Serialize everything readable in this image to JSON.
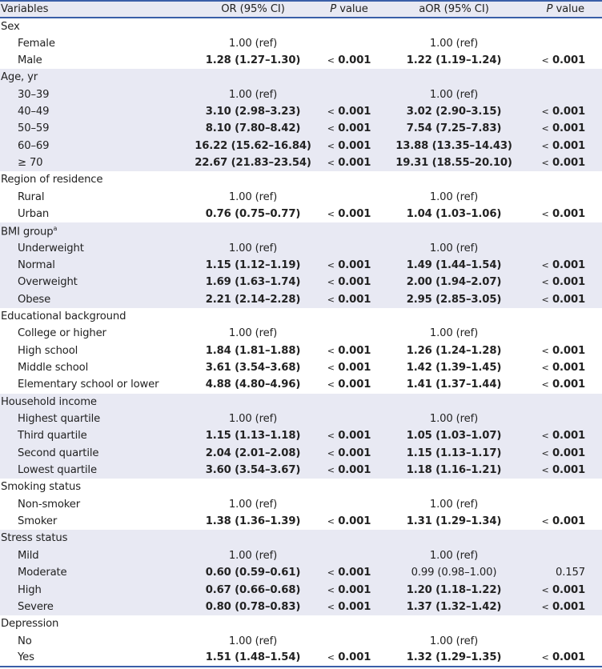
{
  "header": {
    "variables": "Variables",
    "or": "OR (95% CI)",
    "p_italic": "P",
    "p_rest": " value",
    "aor": "aOR (95% CI)"
  },
  "colors": {
    "border": "#3a5ea8",
    "shade": "#e8e9f3"
  },
  "groups": [
    {
      "label": "Sex",
      "sup": "",
      "rows": [
        {
          "label": "Female",
          "or": "1.00 (ref)",
          "p1": "",
          "aor": "1.00 (ref)",
          "p2": "",
          "or_bold": false,
          "aor_bold": false
        },
        {
          "label": "Male",
          "or": "1.28 (1.27–1.30)",
          "p1": "0.001",
          "aor": "1.22 (1.19–1.24)",
          "p2": "0.001",
          "or_bold": true,
          "aor_bold": true
        }
      ]
    },
    {
      "label": "Age, yr",
      "sup": "",
      "rows": [
        {
          "label": "30–39",
          "or": "1.00 (ref)",
          "p1": "",
          "aor": "1.00 (ref)",
          "p2": "",
          "or_bold": false,
          "aor_bold": false
        },
        {
          "label": "40–49",
          "or": "3.10 (2.98–3.23)",
          "p1": "0.001",
          "aor": "3.02 (2.90–3.15)",
          "p2": "0.001",
          "or_bold": true,
          "aor_bold": true
        },
        {
          "label": "50–59",
          "or": "8.10 (7.80–8.42)",
          "p1": "0.001",
          "aor": "7.54 (7.25–7.83)",
          "p2": "0.001",
          "or_bold": true,
          "aor_bold": true
        },
        {
          "label": "60–69",
          "or": "16.22 (15.62–16.84)",
          "p1": "0.001",
          "aor": "13.88 (13.35–14.43)",
          "p2": "0.001",
          "or_bold": true,
          "aor_bold": true
        },
        {
          "label": "≥ 70",
          "or": "22.67 (21.83–23.54)",
          "p1": "0.001",
          "aor": "19.31 (18.55–20.10)",
          "p2": "0.001",
          "or_bold": true,
          "aor_bold": true
        }
      ]
    },
    {
      "label": "Region of residence",
      "sup": "",
      "rows": [
        {
          "label": "Rural",
          "or": "1.00 (ref)",
          "p1": "",
          "aor": "1.00 (ref)",
          "p2": "",
          "or_bold": false,
          "aor_bold": false
        },
        {
          "label": "Urban",
          "or": "0.76 (0.75–0.77)",
          "p1": "0.001",
          "aor": "1.04 (1.03–1.06)",
          "p2": "0.001",
          "or_bold": true,
          "aor_bold": true
        }
      ]
    },
    {
      "label": "BMI group",
      "sup": "a",
      "rows": [
        {
          "label": "Underweight",
          "or": "1.00 (ref)",
          "p1": "",
          "aor": "1.00 (ref)",
          "p2": "",
          "or_bold": false,
          "aor_bold": false
        },
        {
          "label": "Normal",
          "or": "1.15 (1.12–1.19)",
          "p1": "0.001",
          "aor": "1.49 (1.44–1.54)",
          "p2": "0.001",
          "or_bold": true,
          "aor_bold": true
        },
        {
          "label": "Overweight",
          "or": "1.69 (1.63–1.74)",
          "p1": "0.001",
          "aor": "2.00 (1.94–2.07)",
          "p2": "0.001",
          "or_bold": true,
          "aor_bold": true
        },
        {
          "label": "Obese",
          "or": "2.21 (2.14–2.28)",
          "p1": "0.001",
          "aor": "2.95 (2.85–3.05)",
          "p2": "0.001",
          "or_bold": true,
          "aor_bold": true
        }
      ]
    },
    {
      "label": "Educational background",
      "sup": "",
      "rows": [
        {
          "label": "College or higher",
          "or": "1.00 (ref)",
          "p1": "",
          "aor": "1.00 (ref)",
          "p2": "",
          "or_bold": false,
          "aor_bold": false
        },
        {
          "label": "High school",
          "or": "1.84 (1.81–1.88)",
          "p1": "0.001",
          "aor": "1.26 (1.24–1.28)",
          "p2": "0.001",
          "or_bold": true,
          "aor_bold": true
        },
        {
          "label": "Middle school",
          "or": "3.61 (3.54–3.68)",
          "p1": "0.001",
          "aor": "1.42 (1.39–1.45)",
          "p2": "0.001",
          "or_bold": true,
          "aor_bold": true
        },
        {
          "label": "Elementary school or lower",
          "or": "4.88 (4.80–4.96)",
          "p1": "0.001",
          "aor": "1.41 (1.37–1.44)",
          "p2": "0.001",
          "or_bold": true,
          "aor_bold": true
        }
      ]
    },
    {
      "label": "Household income",
      "sup": "",
      "rows": [
        {
          "label": "Highest quartile",
          "or": "1.00 (ref)",
          "p1": "",
          "aor": "1.00 (ref)",
          "p2": "",
          "or_bold": false,
          "aor_bold": false
        },
        {
          "label": "Third quartile",
          "or": "1.15 (1.13–1.18)",
          "p1": "0.001",
          "aor": "1.05 (1.03–1.07)",
          "p2": "0.001",
          "or_bold": true,
          "aor_bold": true
        },
        {
          "label": "Second quartile",
          "or": "2.04 (2.01–2.08)",
          "p1": "0.001",
          "aor": "1.15 (1.13–1.17)",
          "p2": "0.001",
          "or_bold": true,
          "aor_bold": true
        },
        {
          "label": "Lowest quartile",
          "or": "3.60 (3.54–3.67)",
          "p1": "0.001",
          "aor": "1.18 (1.16–1.21)",
          "p2": "0.001",
          "or_bold": true,
          "aor_bold": true
        }
      ]
    },
    {
      "label": "Smoking status",
      "sup": "",
      "rows": [
        {
          "label": "Non-smoker",
          "or": "1.00 (ref)",
          "p1": "",
          "aor": "1.00 (ref)",
          "p2": "",
          "or_bold": false,
          "aor_bold": false
        },
        {
          "label": "Smoker",
          "or": "1.38 (1.36–1.39)",
          "p1": "0.001",
          "aor": "1.31 (1.29–1.34)",
          "p2": "0.001",
          "or_bold": true,
          "aor_bold": true
        }
      ]
    },
    {
      "label": "Stress status",
      "sup": "",
      "rows": [
        {
          "label": "Mild",
          "or": "1.00 (ref)",
          "p1": "",
          "aor": "1.00 (ref)",
          "p2": "",
          "or_bold": false,
          "aor_bold": false
        },
        {
          "label": "Moderate",
          "or": "0.60 (0.59–0.61)",
          "p1": "0.001",
          "aor": "0.99 (0.98–1.00)",
          "p2": "0.157",
          "or_bold": true,
          "aor_bold": false,
          "p2_plain": true
        },
        {
          "label": "High",
          "or": "0.67 (0.66–0.68)",
          "p1": "0.001",
          "aor": "1.20 (1.18–1.22)",
          "p2": "0.001",
          "or_bold": true,
          "aor_bold": true
        },
        {
          "label": "Severe",
          "or": "0.80 (0.78–0.83)",
          "p1": "0.001",
          "aor": "1.37 (1.32–1.42)",
          "p2": "0.001",
          "or_bold": true,
          "aor_bold": true
        }
      ]
    },
    {
      "label": "Depression",
      "sup": "",
      "rows": [
        {
          "label": "No",
          "or": "1.00 (ref)",
          "p1": "",
          "aor": "1.00 (ref)",
          "p2": "",
          "or_bold": false,
          "aor_bold": false
        },
        {
          "label": "Yes",
          "or": "1.51 (1.48–1.54)",
          "p1": "0.001",
          "aor": "1.32 (1.29–1.35)",
          "p2": "0.001",
          "or_bold": true,
          "aor_bold": true
        }
      ]
    }
  ],
  "lt_symbol": "<"
}
